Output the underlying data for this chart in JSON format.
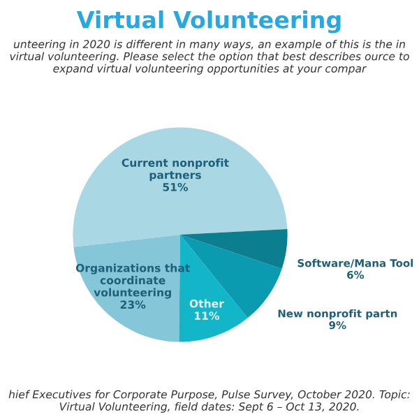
{
  "chart_data": {
    "type": "pie",
    "title": "Virtual Volunteering",
    "subtitle": "unteering in 2020 is different in many ways, an example of this is the in virtual volunteering. Please select the option that best describes ource to expand virtual volunteering opportunities at your compar",
    "categories": [
      "Current nonprofit partners",
      "Organizations that coordinate volunteering",
      "Other",
      "New nonprofit partn",
      "Software/Mana Tool"
    ],
    "values": [
      51,
      23,
      11,
      9,
      6
    ],
    "colors": [
      "#a9d8e4",
      "#85c7d8",
      "#13b5c9",
      "#0a9bb0",
      "#0b7f8f"
    ],
    "value_labels": [
      "51%",
      "23%",
      "11%",
      "9%",
      "6%"
    ],
    "annotations": [
      "hief Executives for Corporate Purpose, Pulse Survey, October 2020. Topic: Virtual Volunteering, field dates: Sept 6 – Oct 13, 2020."
    ]
  }
}
